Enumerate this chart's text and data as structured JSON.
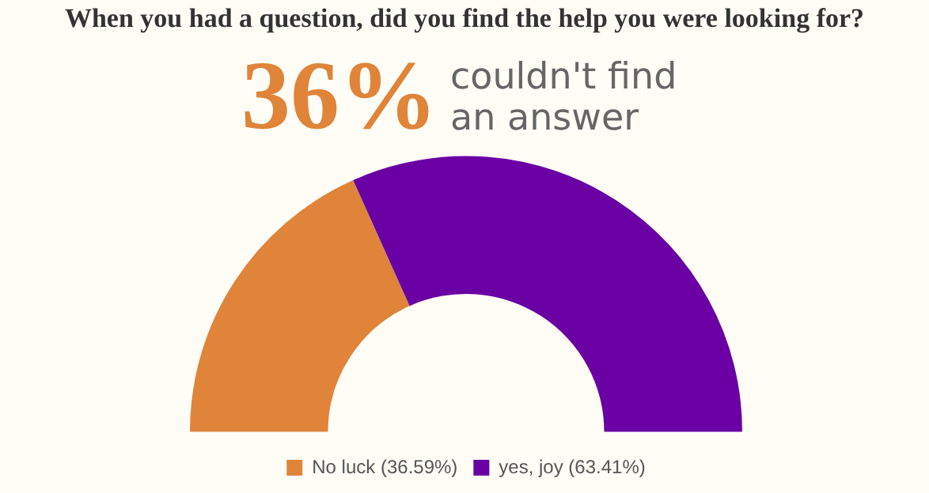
{
  "chart_data": {
    "type": "donut",
    "title": "When you had a question, did you find the help you were looking for?",
    "annotations": [
      "36%",
      "couldn't find an answer"
    ],
    "categories": [
      "No luck (36.59%)",
      "yes, joy (63.41%)"
    ],
    "values": [
      36.59,
      63.41
    ],
    "colors": [
      "#e0843a",
      "#6a00a3"
    ],
    "legend": "bottom"
  }
}
